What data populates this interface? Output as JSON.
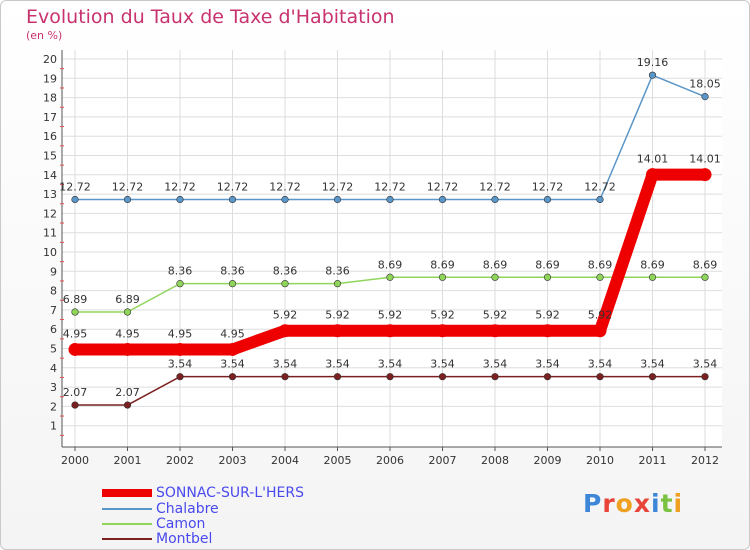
{
  "title": "Evolution du Taux de Taxe d'Habitation",
  "subtitle": "(en %)",
  "logo_text": "Proxiti",
  "chart_data": {
    "type": "line",
    "title": "Evolution du Taux de Taxe d'Habitation",
    "ylabel": "(en %)",
    "xlabel": "",
    "x": [
      "2000",
      "2001",
      "2002",
      "2003",
      "2004",
      "2005",
      "2006",
      "2007",
      "2008",
      "2009",
      "2010",
      "2011",
      "2012"
    ],
    "ylim": [
      0,
      20
    ],
    "yticks": [
      1,
      2,
      3,
      4,
      5,
      6,
      7,
      8,
      9,
      10,
      11,
      12,
      13,
      14,
      15,
      16,
      17,
      18,
      19,
      20
    ],
    "grid": true,
    "legend_position": "bottom-left",
    "series": [
      {
        "name": "Chalabre",
        "color": "#5a96c8",
        "values": [
          12.72,
          12.72,
          12.72,
          12.72,
          12.72,
          12.72,
          12.72,
          12.72,
          12.72,
          12.72,
          12.72,
          19.16,
          18.05
        ],
        "labels": [
          "12.72",
          "12.72",
          "12.72",
          "12.72",
          "12.72",
          "12.72",
          "12.72",
          "12.72",
          "12.72",
          "12.72",
          "12.72",
          "19.16",
          "18.05"
        ]
      },
      {
        "name": "Camon",
        "color": "#8fd55a",
        "values": [
          6.89,
          6.89,
          8.36,
          8.36,
          8.36,
          8.36,
          8.69,
          8.69,
          8.69,
          8.69,
          8.69,
          8.69,
          8.69
        ],
        "labels": [
          "6.89",
          "6.89",
          "8.36",
          "8.36",
          "8.36",
          "8.36",
          "8.69",
          "8.69",
          "8.69",
          "8.69",
          "8.69",
          "8.69",
          "8.69"
        ]
      },
      {
        "name": "Montbel",
        "color": "#7a2020",
        "values": [
          2.07,
          2.07,
          3.54,
          3.54,
          3.54,
          3.54,
          3.54,
          3.54,
          3.54,
          3.54,
          3.54,
          3.54,
          3.54
        ],
        "labels": [
          "2.07",
          "2.07",
          "3.54",
          "3.54",
          "3.54",
          "3.54",
          "3.54",
          "3.54",
          "3.54",
          "3.54",
          "3.54",
          "3.54",
          "3.54"
        ]
      },
      {
        "name": "SONNAC-SUR-L'HERS",
        "color": "#ee0000",
        "values": [
          4.95,
          4.95,
          4.95,
          4.95,
          5.92,
          5.92,
          5.92,
          5.92,
          5.92,
          5.92,
          5.92,
          14.01,
          14.01
        ],
        "labels": [
          "4.95",
          "4.95",
          "4.95",
          "4.95",
          "5.92",
          "5.92",
          "5.92",
          "5.92",
          "5.92",
          "5.92",
          "5.92",
          "14.01",
          "14.01"
        ]
      }
    ]
  },
  "legend": [
    {
      "label": "SONNAC-SUR-L'HERS",
      "color": "#ee0000",
      "text_color": "#4a4aee",
      "thick": true
    },
    {
      "label": "Chalabre",
      "color": "#5a96c8",
      "text_color": "#4a4aee",
      "thick": false
    },
    {
      "label": "Camon",
      "color": "#8fd55a",
      "text_color": "#4a4aee",
      "thick": false
    },
    {
      "label": "Montbel",
      "color": "#7a2020",
      "text_color": "#4a4aee",
      "thick": false
    }
  ]
}
